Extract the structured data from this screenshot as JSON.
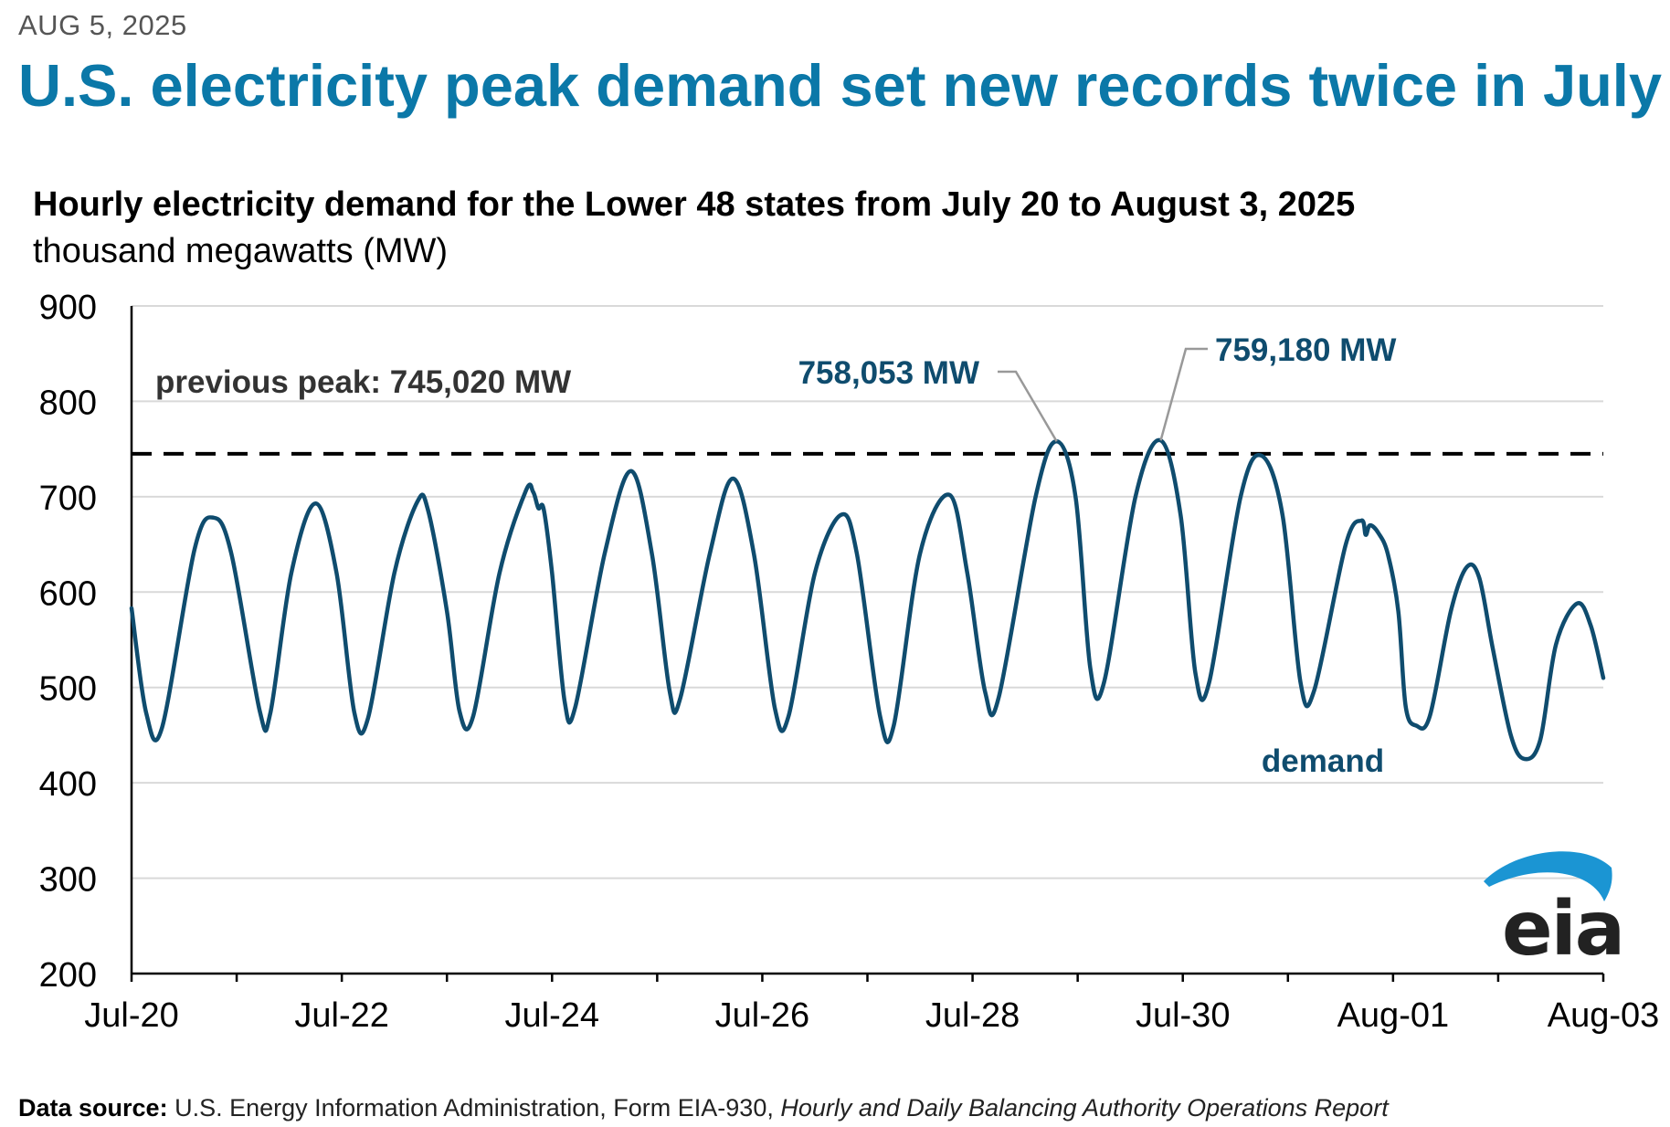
{
  "header": {
    "date": "AUG 5, 2025",
    "headline": "U.S. electricity peak demand set new records twice in July"
  },
  "chart_data": {
    "type": "line",
    "title": "Hourly electricity demand for the Lower 48 states from July 20 to August 3, 2025",
    "ylabel": "thousand megawatts (MW)",
    "xlabel": "",
    "ylim": [
      200,
      900
    ],
    "xlim": [
      0,
      14
    ],
    "y_ticks": [
      200,
      300,
      400,
      500,
      600,
      700,
      800,
      900
    ],
    "x_ticks": [
      {
        "x": 0,
        "label": "Jul-20"
      },
      {
        "x": 2,
        "label": "Jul-22"
      },
      {
        "x": 4,
        "label": "Jul-24"
      },
      {
        "x": 6,
        "label": "Jul-26"
      },
      {
        "x": 8,
        "label": "Jul-28"
      },
      {
        "x": 10,
        "label": "Jul-30"
      },
      {
        "x": 12,
        "label": "Aug-01"
      },
      {
        "x": 14,
        "label": "Aug-03"
      }
    ],
    "minor_x_ticks": [
      1,
      3,
      5,
      7,
      9,
      11,
      13
    ],
    "grid": true,
    "series": [
      {
        "name": "demand",
        "color": "#0f4c6e",
        "points": [
          [
            0.0,
            583
          ],
          [
            0.14,
            473
          ],
          [
            0.29,
            458
          ],
          [
            0.6,
            645
          ],
          [
            0.78,
            678
          ],
          [
            0.95,
            640
          ],
          [
            1.22,
            475
          ],
          [
            1.32,
            473
          ],
          [
            1.52,
            620
          ],
          [
            1.75,
            693
          ],
          [
            1.95,
            620
          ],
          [
            2.12,
            473
          ],
          [
            2.25,
            468
          ],
          [
            2.5,
            620
          ],
          [
            2.72,
            695
          ],
          [
            2.82,
            686
          ],
          [
            3.0,
            580
          ],
          [
            3.12,
            475
          ],
          [
            3.25,
            470
          ],
          [
            3.5,
            620
          ],
          [
            3.75,
            706
          ],
          [
            3.82,
            705
          ],
          [
            3.87,
            688
          ],
          [
            3.92,
            687
          ],
          [
            4.0,
            620
          ],
          [
            4.12,
            485
          ],
          [
            4.22,
            479
          ],
          [
            4.5,
            640
          ],
          [
            4.75,
            727
          ],
          [
            4.95,
            640
          ],
          [
            5.12,
            495
          ],
          [
            5.22,
            489
          ],
          [
            5.5,
            640
          ],
          [
            5.72,
            719
          ],
          [
            5.92,
            640
          ],
          [
            6.12,
            478
          ],
          [
            6.25,
            470
          ],
          [
            6.5,
            620
          ],
          [
            6.75,
            681
          ],
          [
            6.9,
            640
          ],
          [
            7.12,
            470
          ],
          [
            7.25,
            460
          ],
          [
            7.5,
            640
          ],
          [
            7.78,
            702
          ],
          [
            7.95,
            620
          ],
          [
            8.12,
            495
          ],
          [
            8.25,
            490
          ],
          [
            8.6,
            700
          ],
          [
            8.8,
            758
          ],
          [
            8.98,
            700
          ],
          [
            9.12,
            520
          ],
          [
            9.25,
            505
          ],
          [
            9.55,
            700
          ],
          [
            9.79,
            759
          ],
          [
            9.98,
            680
          ],
          [
            10.12,
            515
          ],
          [
            10.25,
            505
          ],
          [
            10.55,
            700
          ],
          [
            10.75,
            743
          ],
          [
            10.95,
            680
          ],
          [
            11.12,
            505
          ],
          [
            11.25,
            497
          ],
          [
            11.55,
            650
          ],
          [
            11.7,
            675
          ],
          [
            11.74,
            660
          ],
          [
            11.78,
            670
          ],
          [
            11.86,
            662
          ],
          [
            11.95,
            640
          ],
          [
            12.05,
            580
          ],
          [
            12.12,
            480
          ],
          [
            12.22,
            460
          ],
          [
            12.35,
            470
          ],
          [
            12.55,
            580
          ],
          [
            12.7,
            626
          ],
          [
            12.82,
            615
          ],
          [
            12.95,
            540
          ],
          [
            13.12,
            450
          ],
          [
            13.25,
            425
          ],
          [
            13.4,
            445
          ],
          [
            13.55,
            545
          ],
          [
            13.75,
            588
          ],
          [
            13.88,
            565
          ],
          [
            14.0,
            510
          ]
        ]
      }
    ],
    "reference_line": {
      "value": 745.02,
      "label": "previous peak: 745,020 MW",
      "style": "dashed"
    },
    "annotations": [
      {
        "text": "758,053 MW",
        "x": 8.8,
        "y": 758
      },
      {
        "text": "759,180 MW",
        "x": 9.79,
        "y": 759
      }
    ],
    "series_label": "demand"
  },
  "logo": {
    "text": "eia"
  },
  "footer": {
    "source_label": "Data source:",
    "source_text": "U.S. Energy Information Administration, Form EIA-930,",
    "source_report": "Hourly and Daily Balancing Authority Operations Report"
  },
  "colors": {
    "headline": "#0b78a8",
    "series": "#0f4c6e",
    "grid": "#d9d9d9",
    "logo_swoosh": "#1b95d3"
  }
}
